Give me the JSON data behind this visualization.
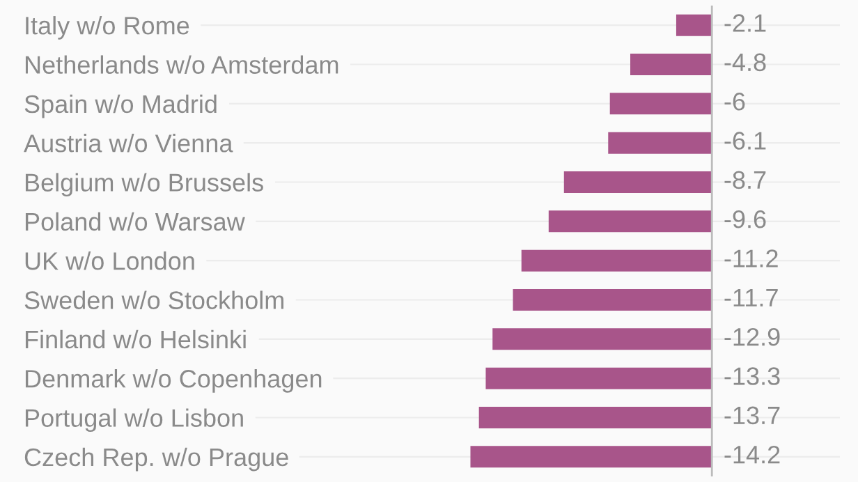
{
  "chart_data": {
    "type": "bar",
    "orientation": "horizontal",
    "categories": [
      "Italy w/o Rome",
      "Netherlands w/o Amsterdam",
      "Spain w/o Madrid",
      "Austria w/o Vienna",
      "Belgium w/o Brussels",
      "Poland w/o Warsaw",
      "UK w/o London",
      "Sweden w/o Stockholm",
      "Finland w/o Helsinki",
      "Denmark w/o Copenhagen",
      "Portugal w/o Lisbon",
      "Czech Rep. w/o Prague"
    ],
    "values": [
      -2.1,
      -4.8,
      -6,
      -6.1,
      -8.7,
      -9.6,
      -11.2,
      -11.7,
      -12.9,
      -13.3,
      -13.7,
      -14.2
    ],
    "color": "#a8558a",
    "data_labels": true,
    "grid": "y"
  }
}
